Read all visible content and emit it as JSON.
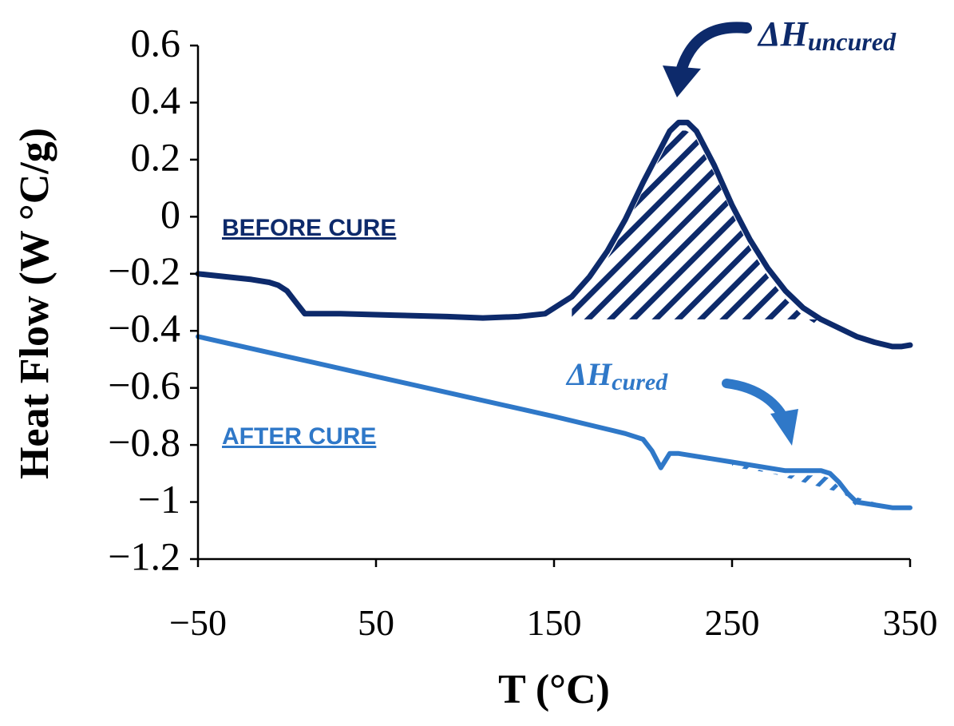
{
  "chart_data": {
    "type": "line",
    "title": "",
    "xlabel": "T (°C)",
    "ylabel": "Heat Flow (W °C/g)",
    "xlim": [
      -50,
      350
    ],
    "ylim": [
      -1.2,
      0.6
    ],
    "xticks": [
      -50,
      50,
      150,
      250,
      350
    ],
    "xtick_labels": [
      "−50",
      "50",
      "150",
      "250",
      "350"
    ],
    "yticks": [
      0.6,
      0.4,
      0.2,
      0,
      -0.2,
      -0.4,
      -0.6,
      -0.8,
      -1,
      -1.2
    ],
    "ytick_labels": [
      "0.6",
      "0.4",
      "0.2",
      "0",
      "−0.2",
      "−0.4",
      "−0.6",
      "−0.8",
      "−1",
      "−1.2"
    ],
    "series": [
      {
        "name": "BEFORE CURE",
        "color": "#0d2a6b",
        "x": [
          -50,
          -20,
          -10,
          -5,
          0,
          5,
          10,
          30,
          60,
          90,
          110,
          130,
          145,
          160,
          170,
          180,
          190,
          200,
          210,
          215,
          220,
          225,
          230,
          240,
          250,
          260,
          270,
          280,
          290,
          300,
          310,
          320,
          330,
          340,
          345,
          350
        ],
        "y": [
          -0.2,
          -0.22,
          -0.23,
          -0.24,
          -0.26,
          -0.3,
          -0.34,
          -0.34,
          -0.345,
          -0.35,
          -0.355,
          -0.35,
          -0.34,
          -0.28,
          -0.21,
          -0.12,
          -0.01,
          0.12,
          0.24,
          0.3,
          0.33,
          0.33,
          0.3,
          0.18,
          0.04,
          -0.08,
          -0.18,
          -0.26,
          -0.32,
          -0.36,
          -0.39,
          -0.42,
          -0.44,
          -0.455,
          -0.455,
          -0.45
        ]
      },
      {
        "name": "AFTER CURE",
        "color": "#2f78c8",
        "x": [
          -50,
          0,
          50,
          100,
          150,
          190,
          200,
          205,
          210,
          212,
          215,
          220,
          250,
          280,
          300,
          305,
          310,
          315,
          320,
          330,
          340,
          350
        ],
        "y": [
          -0.42,
          -0.49,
          -0.56,
          -0.63,
          -0.7,
          -0.76,
          -0.78,
          -0.82,
          -0.88,
          -0.86,
          -0.83,
          -0.83,
          -0.86,
          -0.89,
          -0.89,
          -0.9,
          -0.93,
          -0.97,
          -1.0,
          -1.01,
          -1.02,
          -1.02
        ]
      }
    ],
    "annotations": [
      {
        "name": "dh-uncured",
        "prefix": "ΔH",
        "subscript": "uncured",
        "color": "#0d2a6b",
        "target": [
          218,
          0.34
        ]
      },
      {
        "name": "dh-cured",
        "prefix": "ΔH",
        "subscript": "cured",
        "color": "#2f78c8",
        "target": [
          285,
          -0.88
        ]
      }
    ],
    "shaded_regions": [
      {
        "series": "BEFORE CURE",
        "from_x": 160,
        "to_x": 300,
        "baseline_y": -0.36
      },
      {
        "series": "AFTER CURE",
        "from_x": 250,
        "to_x": 315,
        "baseline_from": [
          250,
          -0.86
        ],
        "baseline_to": [
          335,
          -1.01
        ]
      }
    ]
  }
}
